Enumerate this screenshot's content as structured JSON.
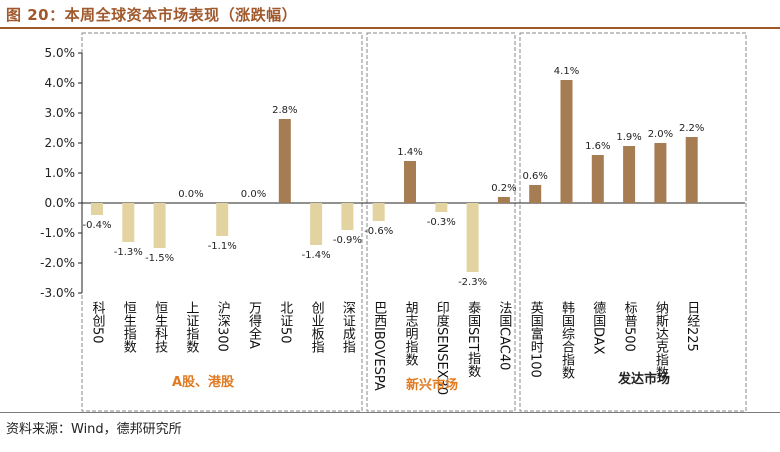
{
  "header": {
    "title": "图 20：本周全球资本市场表现（涨跌幅）"
  },
  "footer": {
    "source": "资料来源：Wind，德邦研究所"
  },
  "colors": {
    "positive": "#a67c52",
    "negative": "#e3d3a1",
    "title": "#a0592c",
    "group_label": "#e07b22",
    "group_label_dark": "#222222"
  },
  "chart_data": {
    "type": "bar",
    "title": "本周全球资本市场表现（涨跌幅）",
    "ylim": [
      -3.0,
      5.0
    ],
    "yticks": [
      "-3.0%",
      "-2.0%",
      "-1.0%",
      "0.0%",
      "1.0%",
      "2.0%",
      "3.0%",
      "4.0%",
      "5.0%"
    ],
    "categories": [
      "科创50",
      "恒生指数",
      "恒生科技",
      "上证指数",
      "沪深300",
      "万得全A",
      "北证50",
      "创业板指",
      "深证成指",
      "巴西IBOVESPA",
      "胡志明指数",
      "印度SENSEX30",
      "泰国SET指数",
      "法国CAC40",
      "英国富时100",
      "韩国综合指数",
      "德国DAX",
      "标普500",
      "纳斯达克指数",
      "日经225"
    ],
    "values": [
      -0.4,
      -1.3,
      -1.5,
      0.0,
      -1.1,
      0.0,
      2.8,
      -1.4,
      -0.9,
      -0.6,
      1.4,
      -0.3,
      -2.3,
      0.2,
      0.6,
      4.1,
      1.6,
      1.9,
      2.0,
      2.2
    ],
    "value_labels": [
      "-0.4%",
      "-1.3%",
      "-1.5%",
      "0.0%",
      "-1.1%",
      "0.0%",
      "2.8%",
      "-1.4%",
      "-0.9%",
      "-0.6%",
      "1.4%",
      "-0.3%",
      "-2.3%",
      "0.2%",
      "0.6%",
      "4.1%",
      "1.6%",
      "1.9%",
      "2.0%",
      "2.2%"
    ],
    "groups": [
      {
        "name": "A股、港股",
        "members": [
          "科创50",
          "恒生指数",
          "恒生科技",
          "上证指数",
          "沪深300",
          "万得全A",
          "北证50",
          "创业板指",
          "深证成指"
        ]
      },
      {
        "name": "新兴市场",
        "members": [
          "巴西IBOVESPA",
          "胡志明指数",
          "印度SENSEX30",
          "泰国SET指数",
          "法国CAC40"
        ]
      },
      {
        "name": "发达市场",
        "members": [
          "英国富时100",
          "韩国综合指数",
          "德国DAX",
          "标普500",
          "纳斯达克指数",
          "日经225"
        ]
      }
    ]
  }
}
